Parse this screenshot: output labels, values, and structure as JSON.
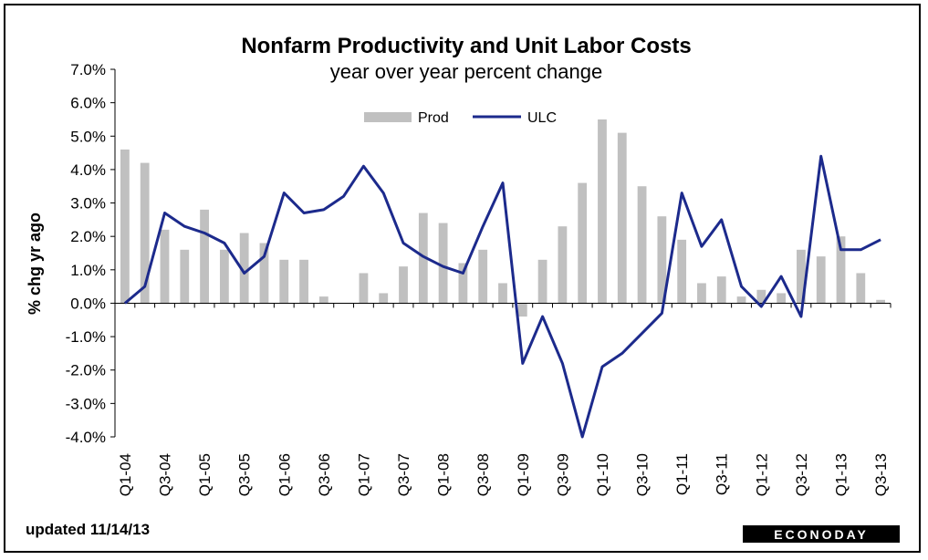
{
  "chart_data": {
    "type": "bar+line",
    "title": "Nonfarm Productivity and Unit Labor Costs",
    "subtitle": "year over year percent change",
    "ylabel": "% chg yr ago",
    "ylim": [
      -4.0,
      7.0
    ],
    "yticks": [
      "7.0%",
      "6.0%",
      "5.0%",
      "4.0%",
      "3.0%",
      "2.0%",
      "1.0%",
      "0.0%",
      "-1.0%",
      "-2.0%",
      "-3.0%",
      "-4.0%"
    ],
    "ytick_values": [
      7,
      6,
      5,
      4,
      3,
      2,
      1,
      0,
      -1,
      -2,
      -3,
      -4
    ],
    "categories": [
      "Q1-04",
      "Q2-04",
      "Q3-04",
      "Q4-04",
      "Q1-05",
      "Q2-05",
      "Q3-05",
      "Q4-05",
      "Q1-06",
      "Q2-06",
      "Q3-06",
      "Q4-06",
      "Q1-07",
      "Q2-07",
      "Q3-07",
      "Q4-07",
      "Q1-08",
      "Q2-08",
      "Q3-08",
      "Q4-08",
      "Q1-09",
      "Q2-09",
      "Q3-09",
      "Q4-09",
      "Q1-10",
      "Q2-10",
      "Q3-10",
      "Q4-10",
      "Q1-11",
      "Q2-11",
      "Q3-11",
      "Q4-11",
      "Q1-12",
      "Q2-12",
      "Q3-12",
      "Q4-12",
      "Q1-13",
      "Q2-13",
      "Q3-13"
    ],
    "xtick_labels": [
      "Q1-04",
      "",
      "Q3-04",
      "",
      "Q1-05",
      "",
      "Q3-05",
      "",
      "Q1-06",
      "",
      "Q3-06",
      "",
      "Q1-07",
      "",
      "Q3-07",
      "",
      "Q1-08",
      "",
      "Q3-08",
      "",
      "Q1-09",
      "",
      "Q3-09",
      "",
      "Q1-10",
      "",
      "Q3-10",
      "",
      "Q1-11",
      "",
      "Q3-11",
      "",
      "Q1-12",
      "",
      "Q3-12",
      "",
      "Q1-13",
      "",
      "Q3-13"
    ],
    "legend_position": "top-center",
    "grid": false,
    "series": [
      {
        "name": "Prod",
        "type": "bar",
        "color": "#c0c0c0",
        "values": [
          4.6,
          4.2,
          2.2,
          1.6,
          2.8,
          1.6,
          2.1,
          1.8,
          1.3,
          1.3,
          0.2,
          0.0,
          0.9,
          0.3,
          1.1,
          2.7,
          2.4,
          1.2,
          1.6,
          0.6,
          -0.4,
          1.3,
          2.3,
          3.6,
          5.5,
          5.1,
          3.5,
          2.6,
          1.9,
          0.6,
          0.8,
          0.2,
          0.4,
          0.3,
          1.6,
          1.4,
          2.0,
          0.9,
          0.1
        ]
      },
      {
        "name": "ULC",
        "type": "line",
        "color": "#1c2a8c",
        "values": [
          0.0,
          0.5,
          2.7,
          2.3,
          2.1,
          1.8,
          0.9,
          1.4,
          3.3,
          2.7,
          2.8,
          3.2,
          4.1,
          3.3,
          1.8,
          1.4,
          1.1,
          0.9,
          2.3,
          3.6,
          -1.8,
          -0.4,
          -1.8,
          -4.0,
          -1.9,
          -1.5,
          -0.9,
          -0.3,
          3.3,
          1.7,
          2.5,
          0.5,
          -0.1,
          0.8,
          -0.4,
          4.4,
          1.6,
          1.6,
          1.9
        ]
      }
    ]
  },
  "footer": {
    "updated": "updated 11/14/13",
    "brand": "ECONODAY"
  }
}
